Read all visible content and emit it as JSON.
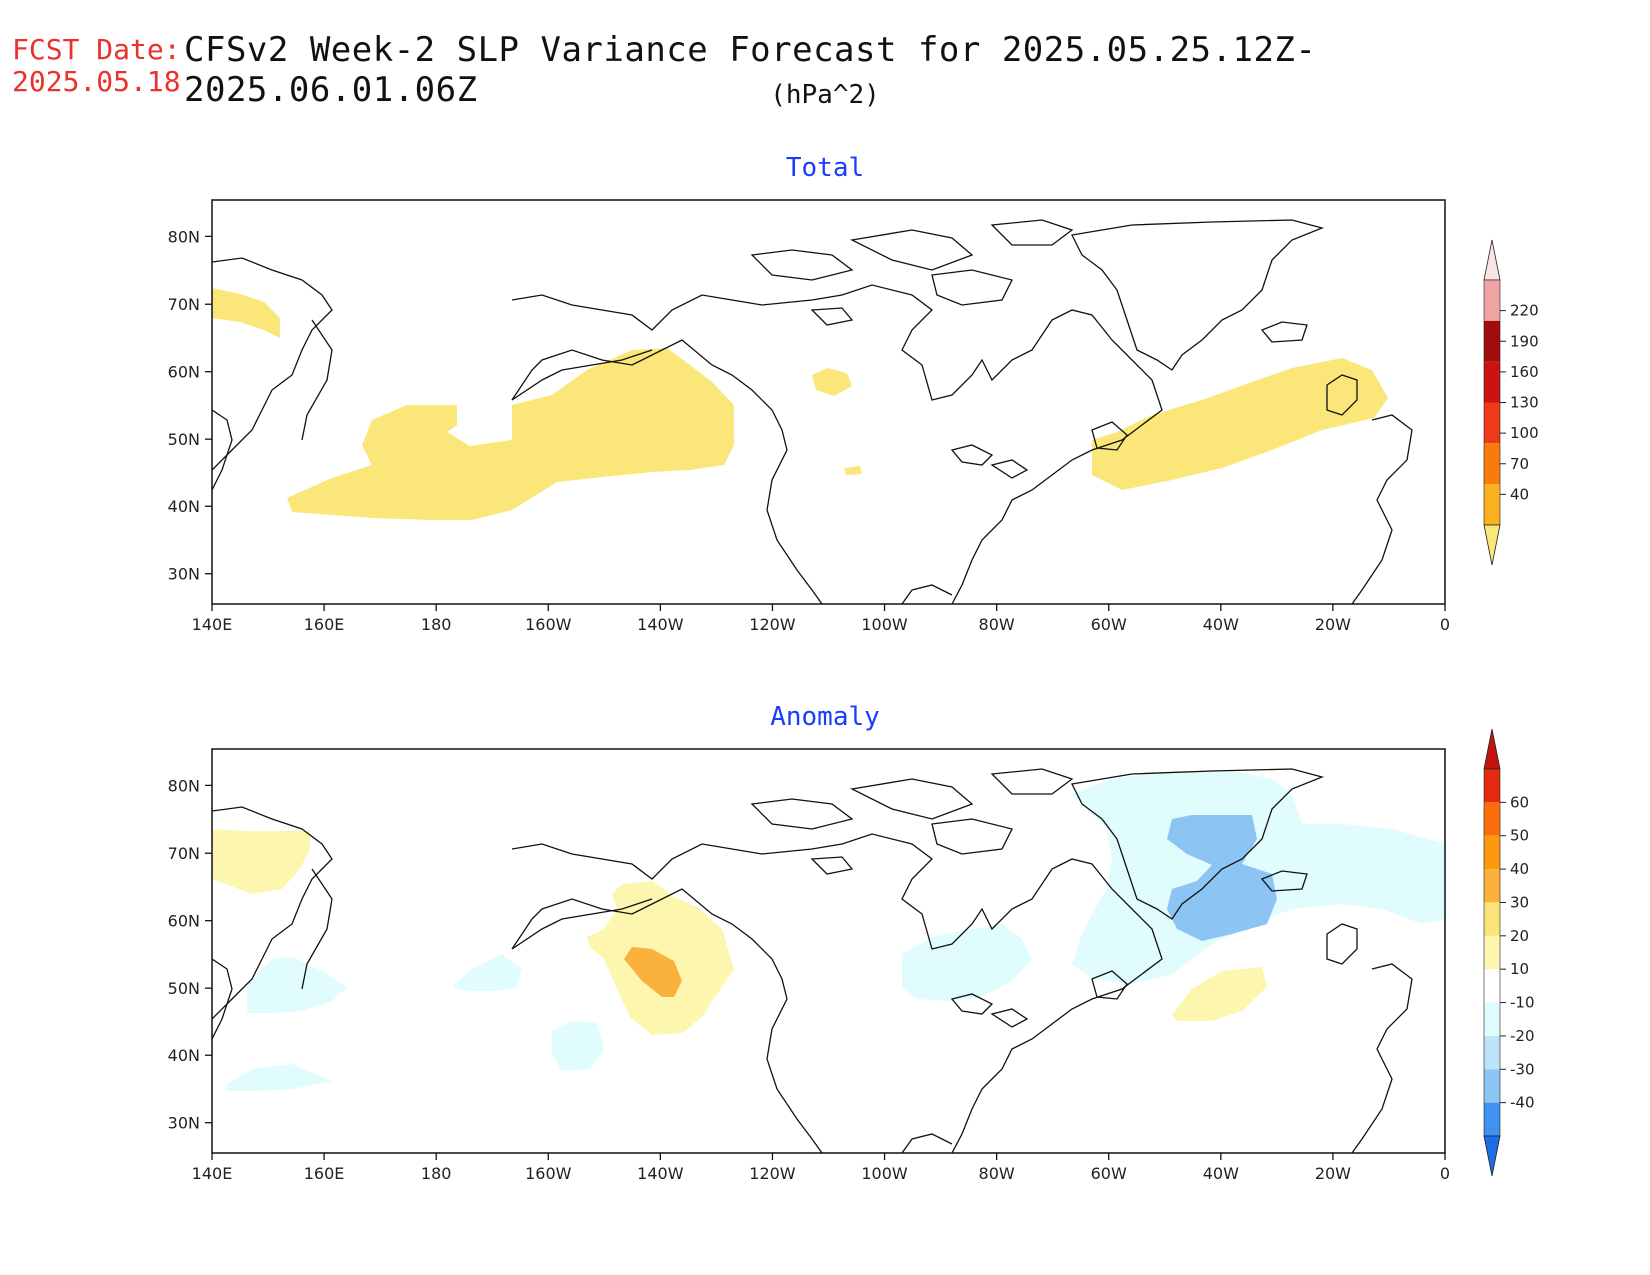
{
  "header": {
    "fcst_label": "FCST Date:",
    "fcst_date": "2025.05.18",
    "title": "CFSv2 Week-2 SLP Variance Forecast for 2025.05.25.12Z-2025.06.01.06Z",
    "units": "(hPa^2)"
  },
  "axes": {
    "lon_ticks": [
      "140E",
      "160E",
      "180",
      "160W",
      "140W",
      "120W",
      "100W",
      "80W",
      "60W",
      "40W",
      "20W",
      "0"
    ],
    "lat_ticks": [
      "80N",
      "70N",
      "60N",
      "50N",
      "40N",
      "30N"
    ]
  },
  "panels": [
    {
      "title": "Total",
      "colorbar": {
        "levels": [
          "40",
          "70",
          "100",
          "130",
          "160",
          "190",
          "220"
        ],
        "colors": [
          "#fbe679",
          "#fbb21e",
          "#fb7a0e",
          "#ee3a17",
          "#cb1412",
          "#a00c0c",
          "#f2a4a4",
          "#fbe4e6"
        ]
      }
    },
    {
      "title": "Anomaly",
      "colorbar": {
        "levels": [
          "-40",
          "-30",
          "-20",
          "-10",
          "10",
          "20",
          "30",
          "40",
          "50",
          "60"
        ],
        "colors": [
          "#1c6ee8",
          "#3f92f0",
          "#8cc4f4",
          "#bde4fb",
          "#e0fcfd",
          "#ffffff",
          "#fdf6af",
          "#fbe47a",
          "#fbb23d",
          "#fb9a0d",
          "#fb6d0b",
          "#e42b10",
          "#c41410"
        ]
      }
    }
  ]
}
